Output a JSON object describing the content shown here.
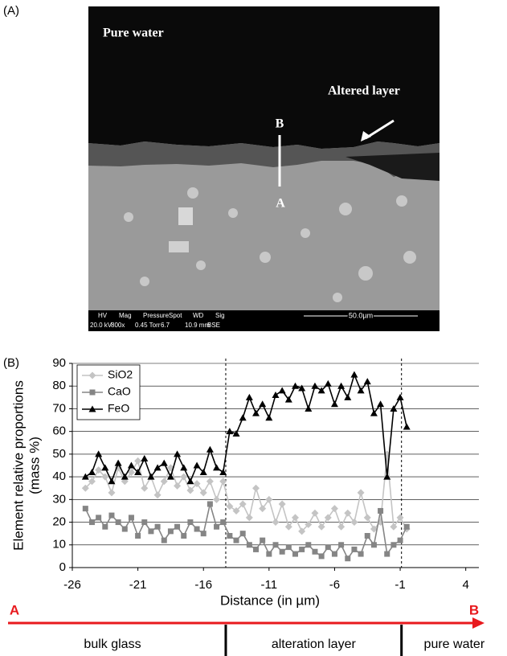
{
  "panel_labels": [
    "(A)",
    "(B)"
  ],
  "image": {
    "top_label": "Pure water",
    "layer_label": "Altered layer",
    "point_top": "B",
    "point_bottom": "A",
    "info": [
      [
        "HV",
        "20.0 kV"
      ],
      [
        "Mag",
        "800x"
      ],
      [
        "Pressure",
        "0.45 Torr"
      ],
      [
        "Spot",
        "6.7"
      ],
      [
        "WD",
        "10.9 mm"
      ],
      [
        "Sig",
        "BSE"
      ]
    ],
    "scale_bar": "50.0µm"
  },
  "chart_data": {
    "type": "line",
    "ylabel": [
      "Element relative proportions",
      "(mass %)"
    ],
    "xlabel": "Distance (in µm)",
    "x": [
      -25,
      -24.5,
      -24,
      -23.5,
      -23,
      -22.5,
      -22,
      -21.5,
      -21,
      -20.5,
      -20,
      -19.5,
      -19,
      -18.5,
      -18,
      -17.5,
      -17,
      -16.5,
      -16,
      -15.5,
      -15,
      -14.5,
      -14,
      -13.5,
      -13,
      -12.5,
      -12,
      -11.5,
      -11,
      -10.5,
      -10,
      -9.5,
      -9,
      -8.5,
      -8,
      -7.5,
      -7,
      -6.5,
      -6,
      -5.5,
      -5,
      -4.5,
      -4,
      -3.5,
      -3,
      -2.5,
      -2,
      -1.5,
      -1,
      -0.5
    ],
    "series": [
      {
        "name": "SiO2",
        "color": "#c4c4c4",
        "marker": "diamond",
        "values": [
          35,
          38,
          43,
          40,
          33,
          44,
          38,
          42,
          47,
          35,
          40,
          32,
          38,
          44,
          36,
          40,
          34,
          37,
          33,
          38,
          30,
          38,
          27,
          25,
          28,
          22,
          35,
          26,
          30,
          20,
          28,
          18,
          22,
          16,
          19,
          24,
          18,
          22,
          26,
          18,
          24,
          20,
          33,
          22,
          17,
          20,
          50,
          18,
          22,
          17
        ]
      },
      {
        "name": "CaO",
        "color": "#858585",
        "marker": "square",
        "values": [
          26,
          20,
          22,
          18,
          23,
          20,
          17,
          22,
          14,
          20,
          16,
          18,
          12,
          16,
          18,
          14,
          20,
          17,
          15,
          28,
          18,
          20,
          14,
          12,
          15,
          10,
          8,
          12,
          6,
          10,
          7,
          9,
          6,
          8,
          10,
          7,
          5,
          9,
          6,
          10,
          4,
          8,
          6,
          14,
          10,
          25,
          6,
          10,
          12,
          18
        ]
      },
      {
        "name": "FeO",
        "color": "#000000",
        "marker": "triangle",
        "values": [
          40,
          42,
          50,
          44,
          38,
          46,
          40,
          45,
          42,
          48,
          40,
          44,
          46,
          40,
          50,
          44,
          38,
          45,
          42,
          52,
          44,
          42,
          60,
          59,
          66,
          75,
          68,
          72,
          66,
          76,
          78,
          74,
          80,
          79,
          70,
          80,
          78,
          81,
          72,
          80,
          75,
          85,
          78,
          82,
          68,
          72,
          40,
          70,
          75,
          62
        ]
      }
    ],
    "xlim": [
      -26,
      5
    ],
    "xticks": [
      -26,
      -21,
      -16,
      -11,
      -6,
      -1,
      4
    ],
    "ylim": [
      0,
      90
    ],
    "yticks": [
      0,
      10,
      20,
      30,
      40,
      50,
      60,
      70,
      80,
      90
    ],
    "grid": true,
    "legend": "top-left",
    "vlines": [
      -14.3,
      -0.9
    ],
    "arrow_start": "A",
    "arrow_end": "B",
    "zones": [
      "bulk glass",
      "alteration layer",
      "pure water"
    ]
  }
}
